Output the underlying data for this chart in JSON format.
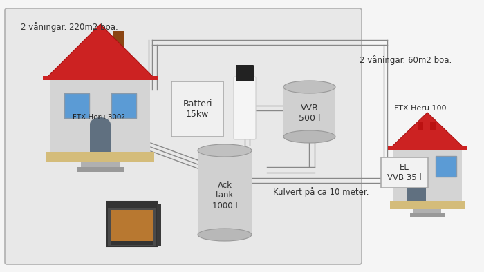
{
  "title1": "2 våningar. 220m2 boa.",
  "title2": "2 våningar. 60m2 boa.",
  "label_battery": "Batteri\n15kw",
  "label_vvb": "VVB\n500 l",
  "label_ack": "Ack\ntank\n1000 l",
  "label_el_vvb": "EL\nVVB 35 l",
  "label_ftx1": "FTX Heru 300?",
  "label_ftx2": "FTX Heru 100",
  "label_kulvert": "Kulvert på ca 10 meter.",
  "outer_bg": "#f0f0f0",
  "inner_bg": "#e8e8e8",
  "roof_red": "#cc2222",
  "chimney_brown": "#8B4513",
  "chimney_gray": "#999999",
  "wall_color": "#d8d8d8",
  "window_blue": "#5b9bd5",
  "door_gray": "#607080",
  "foundation_yellow": "#d4bc7a",
  "step_gray": "#909090",
  "tank_body": "#d0d0d0",
  "tank_top": "#c0c0c0",
  "tank_edge": "#999999",
  "hp_white": "#f5f5f5",
  "hp_black": "#222222",
  "box_bg": "#f0f0f0",
  "box_edge": "#aaaaaa",
  "line_color": "#888888",
  "text_color": "#333333",
  "fp_outer": "#4a4a4a",
  "fp_inner": "#222222",
  "fp_fire": "#b87830"
}
